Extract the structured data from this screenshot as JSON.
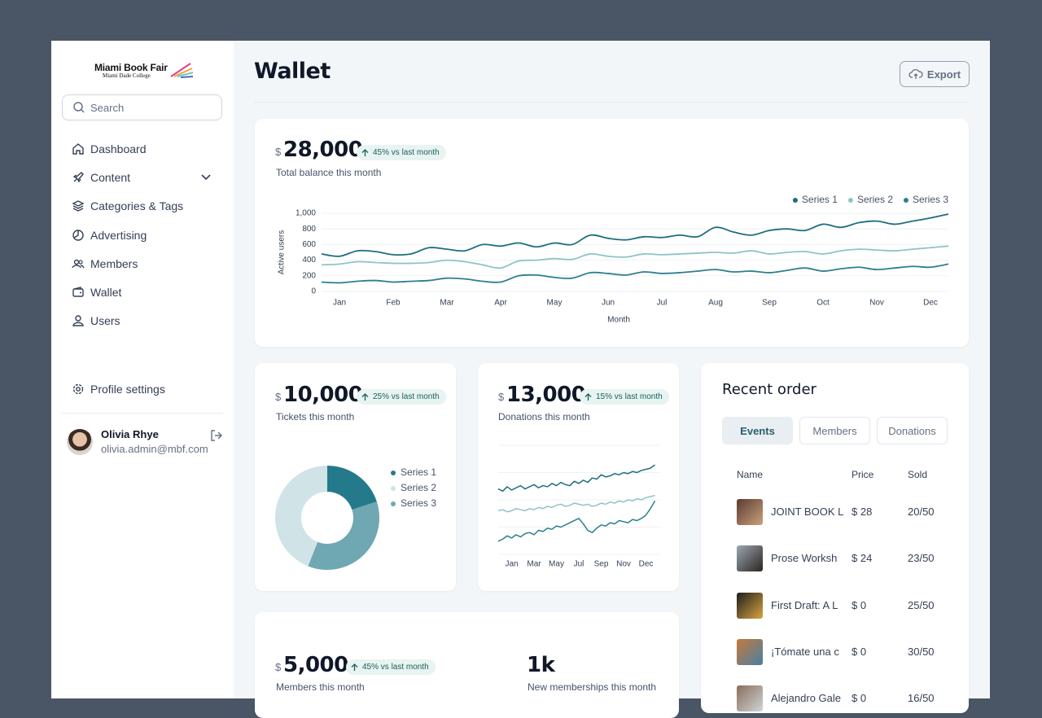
{
  "sidebar": {
    "logo": {
      "title": "Miami Book Fair",
      "subtitle": "Miami Dade College"
    },
    "search_placeholder": "Search",
    "nav": [
      "Dashboard",
      "Content",
      "Categories & Tags",
      "Advertising",
      "Members",
      "Wallet",
      "Users"
    ],
    "profile_settings": "Profile settings",
    "user": {
      "name": "Olivia Rhye",
      "email": "olivia.admin@mbf.com"
    }
  },
  "header": {
    "title": "Wallet",
    "export": "Export"
  },
  "balance": {
    "currency": "$",
    "amount": "28,000",
    "change": "45% vs last month",
    "caption": "Total balance this month"
  },
  "tickets": {
    "currency": "$",
    "amount": "10,000",
    "change": "25% vs last month",
    "caption": "Tickets this month"
  },
  "donations": {
    "currency": "$",
    "amount": "13,000",
    "change": "15% vs last month",
    "caption": "Donations this month"
  },
  "members": {
    "currency": "$",
    "amount": "5,000",
    "change": "45% vs last month",
    "caption": "Members this month",
    "new_count": "1k",
    "new_caption": "New memberships this month"
  },
  "recent_order": {
    "title": "Recent order",
    "tabs": [
      "Events",
      "Members",
      "Donations"
    ],
    "columns": [
      "Name",
      "Price",
      "Sold"
    ],
    "rows": [
      [
        "JOINT BOOK L",
        "$ 28",
        "20/50"
      ],
      [
        "Prose Worksh",
        "$ 24",
        "23/50"
      ],
      [
        "First Draft: A L",
        "$ 0",
        "25/50"
      ],
      [
        "¡Tómate una c",
        "$ 0",
        "30/50"
      ],
      [
        "Alejandro Gale",
        "$ 0",
        "16/50"
      ]
    ]
  },
  "chart_data": [
    {
      "type": "line",
      "categories": [
        null,
        "Jan",
        null,
        null,
        "Feb",
        null,
        null,
        "Mar",
        null,
        null,
        "Apr",
        null,
        null,
        "May",
        null,
        null,
        "Jun",
        null,
        null,
        "Jul",
        null,
        null,
        "Aug",
        null,
        null,
        "Sep",
        null,
        null,
        "Oct",
        null,
        null,
        "Nov",
        null,
        null,
        "Dec",
        null
      ],
      "series": [
        {
          "name": "Series 1",
          "color": "#1f6e7f",
          "values": [
            480,
            450,
            520,
            510,
            470,
            480,
            560,
            540,
            520,
            600,
            580,
            620,
            570,
            620,
            600,
            720,
            680,
            660,
            700,
            690,
            720,
            700,
            820,
            760,
            720,
            780,
            800,
            780,
            860,
            820,
            880,
            900,
            860,
            900,
            940,
            990
          ]
        },
        {
          "name": "Series 2",
          "color": "#8fc4c7",
          "values": [
            340,
            350,
            380,
            370,
            360,
            360,
            370,
            400,
            380,
            340,
            300,
            390,
            400,
            420,
            410,
            480,
            450,
            440,
            480,
            470,
            480,
            490,
            500,
            490,
            520,
            480,
            500,
            510,
            480,
            520,
            540,
            530,
            520,
            540,
            560,
            580
          ]
        },
        {
          "name": "Series 3",
          "color": "#2e7f8e",
          "values": [
            120,
            110,
            130,
            140,
            120,
            130,
            140,
            170,
            160,
            130,
            120,
            200,
            210,
            180,
            170,
            240,
            230,
            210,
            250,
            230,
            240,
            260,
            280,
            250,
            260,
            240,
            270,
            300,
            260,
            290,
            310,
            280,
            300,
            320,
            310,
            350
          ]
        }
      ],
      "ylim": [
        0,
        1000
      ],
      "yticks": [
        0,
        200,
        400,
        600,
        800,
        {
          "value": 1000,
          "label": "1,000"
        }
      ],
      "ylabel": "Active users",
      "xlabel": "Month",
      "grid": true,
      "legend": "top-right"
    },
    {
      "type": "pie",
      "donut": true,
      "categories": [
        "Series 1",
        "Series 2",
        "Series 3"
      ],
      "values": [
        20,
        44,
        36
      ],
      "colors": [
        "#247a8a",
        "#d0e3e6",
        "#6fa8b2"
      ],
      "legend": "right"
    },
    {
      "type": "line",
      "categories": [
        null,
        null,
        null,
        "Jan",
        null,
        null,
        null,
        null,
        "Mar",
        null,
        null,
        null,
        null,
        "May",
        null,
        null,
        null,
        null,
        "Jul",
        null,
        null,
        null,
        null,
        "Sep",
        null,
        null,
        null,
        null,
        "Nov",
        null,
        null,
        null,
        null,
        "Dec",
        null,
        null
      ],
      "series": [
        {
          "color": "#1f6e7f",
          "values": [
            60,
            58,
            62,
            59,
            61,
            63,
            60,
            62,
            64,
            61,
            63,
            62,
            65,
            63,
            66,
            64,
            63,
            67,
            65,
            68,
            66,
            70,
            69,
            73,
            71,
            72,
            74,
            73,
            75,
            74,
            76,
            75,
            77,
            78,
            79,
            82
          ]
        },
        {
          "color": "#8fc4c7",
          "values": [
            40,
            41,
            39,
            40,
            42,
            41,
            40,
            42,
            41,
            43,
            42,
            44,
            43,
            45,
            46,
            44,
            45,
            47,
            46,
            45,
            46,
            44,
            45,
            47,
            46,
            48,
            47,
            49,
            48,
            50,
            49,
            51,
            50,
            52,
            53,
            54
          ]
        },
        {
          "color": "#2e7f8e",
          "values": [
            12,
            14,
            17,
            15,
            18,
            16,
            19,
            20,
            18,
            22,
            21,
            24,
            23,
            26,
            25,
            27,
            29,
            31,
            33,
            28,
            22,
            20,
            24,
            27,
            26,
            29,
            28,
            31,
            30,
            29,
            32,
            31,
            33,
            36,
            42,
            49
          ]
        }
      ],
      "ylim": [
        0,
        100
      ],
      "grid": true
    }
  ]
}
